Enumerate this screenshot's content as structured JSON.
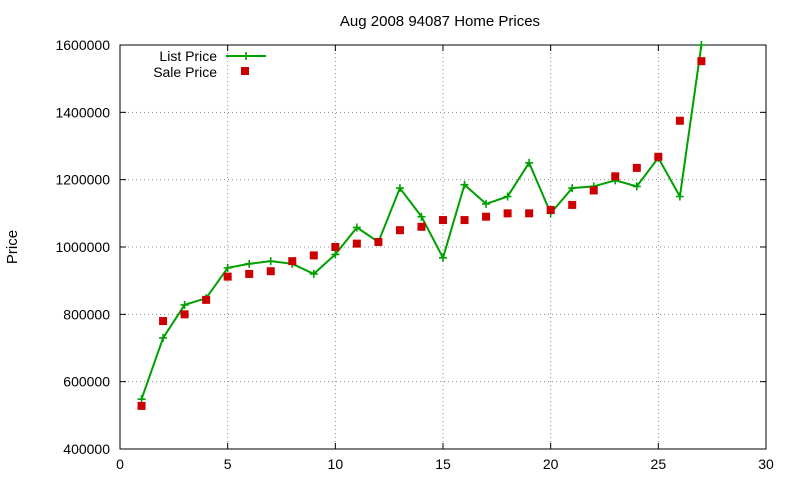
{
  "chart_data": {
    "type": "line",
    "title": "Aug 2008 94087 Home Prices",
    "xlabel": "",
    "ylabel": "Price",
    "xlim": [
      0,
      30
    ],
    "ylim": [
      400000,
      1600000
    ],
    "xticks": [
      0,
      5,
      10,
      15,
      20,
      25,
      30
    ],
    "yticks": [
      400000,
      600000,
      800000,
      1000000,
      1200000,
      1400000,
      1600000
    ],
    "grid": true,
    "legend_position": "top-left",
    "series": [
      {
        "name": "List Price",
        "style": "line+cross",
        "color": "#00a000",
        "x": [
          1,
          2,
          3,
          4,
          5,
          6,
          7,
          8,
          9,
          10,
          11,
          12,
          13,
          14,
          15,
          16,
          17,
          18,
          19,
          20,
          21,
          22,
          23,
          24,
          25,
          26,
          27
        ],
        "y": [
          548000,
          730000,
          828000,
          848000,
          938000,
          950000,
          958000,
          950000,
          920000,
          978000,
          1058000,
          1015000,
          1175000,
          1090000,
          968000,
          1185000,
          1128000,
          1150000,
          1250000,
          1100000,
          1175000,
          1180000,
          1198000,
          1180000,
          1265000,
          1150000,
          1600000
        ]
      },
      {
        "name": "Sale Price",
        "style": "square",
        "color": "#cc0000",
        "x": [
          1,
          2,
          3,
          4,
          5,
          6,
          7,
          8,
          9,
          10,
          11,
          12,
          13,
          14,
          15,
          16,
          17,
          18,
          19,
          20,
          21,
          22,
          23,
          24,
          25,
          26,
          27
        ],
        "y": [
          528000,
          780000,
          800000,
          843000,
          912000,
          920000,
          928000,
          958000,
          975000,
          1000000,
          1010000,
          1015000,
          1050000,
          1060000,
          1080000,
          1080000,
          1090000,
          1100000,
          1100000,
          1110000,
          1125000,
          1168000,
          1210000,
          1235000,
          1268000,
          1375000,
          1552000
        ]
      }
    ]
  }
}
